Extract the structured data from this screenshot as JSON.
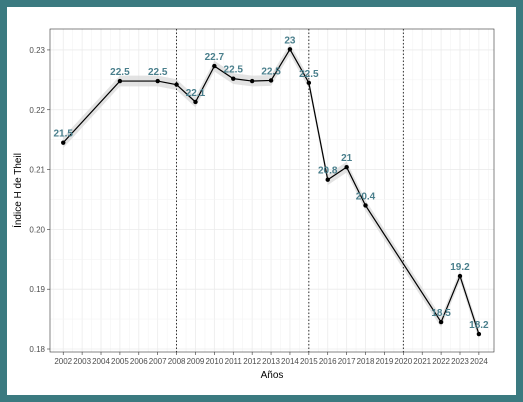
{
  "chart_data": {
    "type": "line",
    "title": "",
    "xlabel": "Años",
    "ylabel": "Índice H de Theil",
    "x": [
      2002,
      2005,
      2007,
      2008,
      2009,
      2010,
      2011,
      2012,
      2013,
      2014,
      2015,
      2016,
      2017,
      2018,
      2022,
      2023,
      2024
    ],
    "series": [
      {
        "values": [
          0.2145,
          0.2248,
          0.2248,
          0.2242,
          0.2213,
          0.2273,
          0.2252,
          0.2248,
          0.2249,
          0.2301,
          0.2245,
          0.2083,
          0.2104,
          0.204,
          0.1845,
          0.1922,
          0.1825
        ],
        "point_labels": [
          "21.5",
          "22.5",
          "22.5",
          "",
          "22.1",
          "22.7",
          "22.5",
          "",
          "22.5",
          "23",
          "22.5",
          "20.8",
          "21",
          "20.4",
          "18.5",
          "19.2",
          "18.2"
        ]
      }
    ],
    "xlim": [
      2001.3,
      2024.8
    ],
    "ylim": [
      0.1795,
      0.2335
    ],
    "x_ticks": [
      "2002",
      "2003",
      "2004",
      "2005",
      "2006",
      "2007",
      "2008",
      "2009",
      "2010",
      "2011",
      "2012",
      "2013",
      "2014",
      "2015",
      "2016",
      "2017",
      "2018",
      "2019",
      "2020",
      "2021",
      "2022",
      "2023",
      "2024"
    ],
    "y_ticks": [
      "0.18",
      "0.19",
      "0.20",
      "0.21",
      "0.22",
      "0.23"
    ],
    "vlines": [
      2008,
      2015,
      2020
    ],
    "grid": true,
    "confidence_band": true,
    "colors": {
      "line": "#000000",
      "label": "#4a7f8c",
      "band": "#d9d9d9",
      "grid": "#ebebeb",
      "frame": "#3b7a80"
    }
  }
}
